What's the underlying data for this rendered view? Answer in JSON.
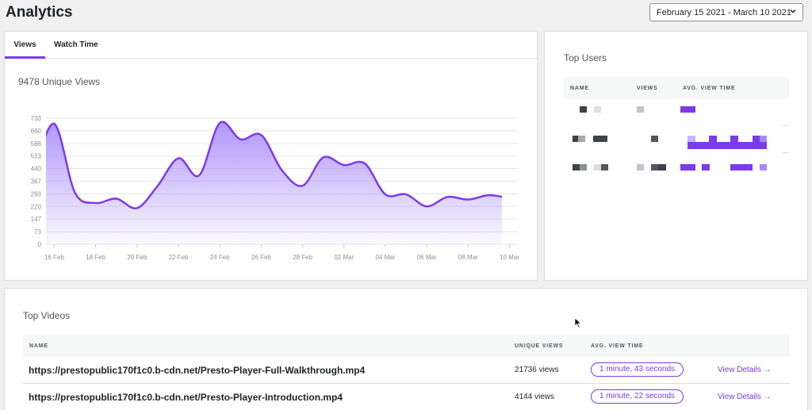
{
  "page": {
    "title": "Analytics"
  },
  "date_range": {
    "value": "February 15 2021 - March 10 2021"
  },
  "tabs": [
    {
      "label": "Views"
    },
    {
      "label": "Watch Time"
    }
  ],
  "views_card": {
    "title": "9478 Unique Views"
  },
  "chart_data": {
    "type": "area",
    "title": "9478 Unique Views",
    "y_ticks": [
      0,
      73,
      147,
      220,
      293,
      367,
      440,
      513,
      586,
      660,
      733
    ],
    "ylim": [
      0,
      733
    ],
    "x_tick_labels": [
      "16 Feb",
      "18 Feb",
      "20 Feb",
      "22 Feb",
      "24 Feb",
      "26 Feb",
      "28 Feb",
      "02 Mar",
      "04 Mar",
      "06 Mar",
      "08 Mar",
      "10 Mar"
    ],
    "x_tick_days": [
      1,
      3,
      5,
      7,
      9,
      11,
      13,
      15,
      17,
      19,
      21,
      23
    ],
    "xlim": [
      0.6,
      23.4
    ],
    "x_days": [
      0,
      1,
      2,
      3,
      4,
      5,
      6,
      7,
      8,
      9,
      10,
      11,
      12,
      13,
      14,
      15,
      16,
      17,
      18,
      19,
      20,
      21,
      22,
      23,
      24
    ],
    "values": [
      420,
      700,
      300,
      240,
      265,
      210,
      340,
      500,
      400,
      705,
      610,
      635,
      430,
      340,
      505,
      460,
      470,
      290,
      290,
      220,
      275,
      260,
      285,
      270,
      275
    ],
    "line_color": "#7c3aed",
    "fill_color": "#a78bfa",
    "grid": true
  },
  "top_users": {
    "title": "Top Users",
    "headers": {
      "name": "NAME",
      "views": "VIEWS",
      "avg": "AVG. VIEW TIME"
    }
  },
  "top_videos": {
    "title": "Top Videos",
    "headers": {
      "name": "NAME",
      "views": "UNIQUE VIEWS",
      "avg": "AVG. VIEW TIME"
    },
    "rows": [
      {
        "name": "https://prestopublic170f1c0.b-cdn.net/Presto-Player-Full-Walkthrough.mp4",
        "views": "21736 views",
        "avg": "1 minute, 43 seconds",
        "action": "View Details →"
      },
      {
        "name": "https://prestopublic170f1c0.b-cdn.net/Presto-Player-Introduction.mp4",
        "views": "4144 views",
        "avg": "1 minute, 22 seconds",
        "action": "View Details →"
      }
    ]
  }
}
